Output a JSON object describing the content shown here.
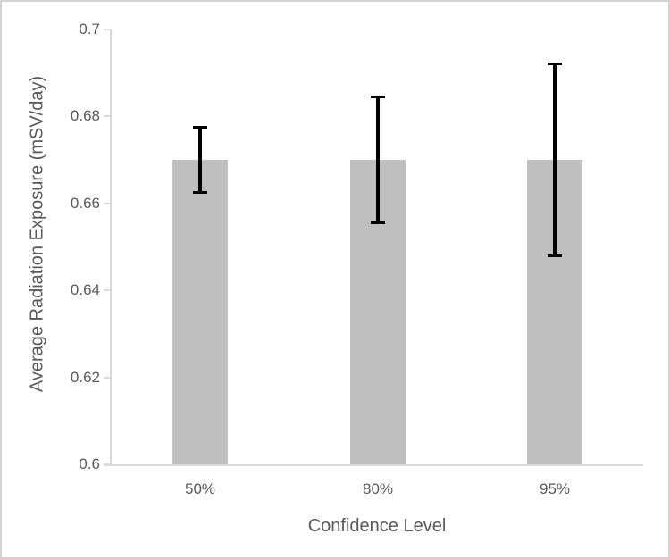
{
  "page": {
    "background_color": "#ffffff",
    "border_color": "#d2d2d2"
  },
  "chart_data": {
    "type": "bar",
    "title": "",
    "categories": [
      "50%",
      "80%",
      "95%"
    ],
    "values": [
      0.67,
      0.67,
      0.67
    ],
    "error_low": [
      0.6624,
      0.6555,
      0.6478
    ],
    "error_high": [
      0.6776,
      0.6845,
      0.6922
    ],
    "xlabel": "Confidence Level",
    "ylabel": "Average Radiation Exposure (mSV/day)",
    "ylim": [
      0.6,
      0.7
    ],
    "ytick_values": [
      0.6,
      0.62,
      0.64,
      0.66,
      0.68,
      0.7
    ],
    "ytick_labels": [
      "0.6",
      "0.62",
      "0.64",
      "0.66",
      "0.68",
      "0.7"
    ],
    "grid": false,
    "legend": null,
    "bar_color": "#bfbfbf",
    "error_bar_color": "#000000",
    "axis_color": "#d9d9d9",
    "text_color": "#595959"
  }
}
